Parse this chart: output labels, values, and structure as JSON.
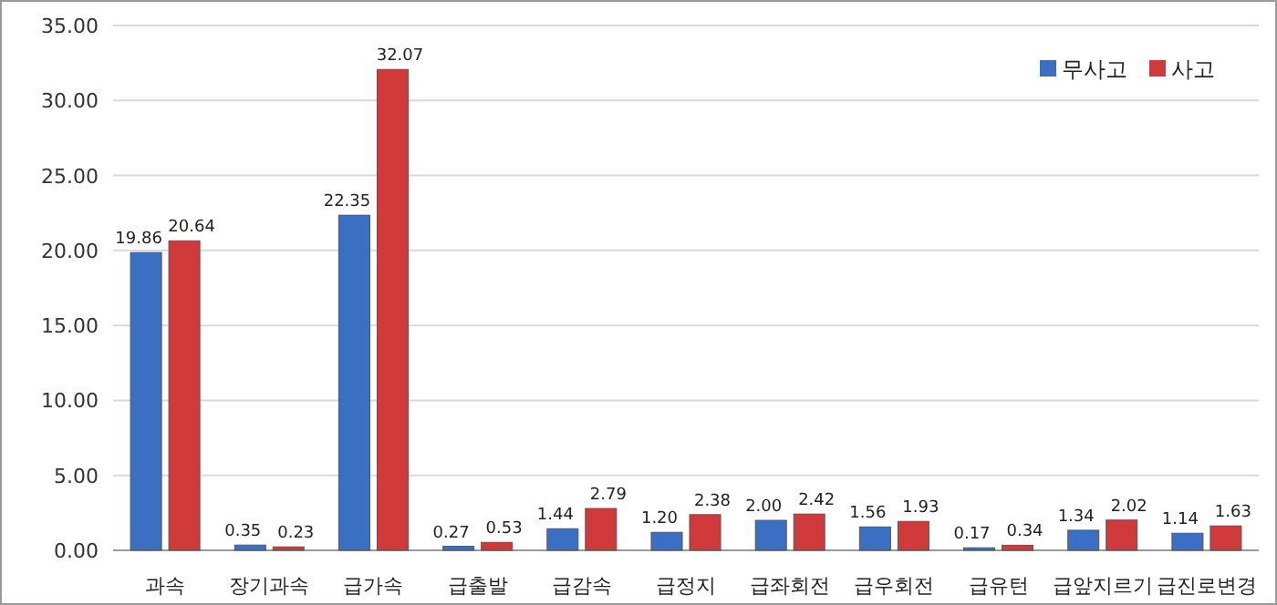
{
  "chart_data": {
    "type": "bar",
    "categories": [
      "과속",
      "장기과속",
      "급가속",
      "급출발",
      "급감속",
      "급정지",
      "급좌회전",
      "급우회전",
      "급유턴",
      "급앞지르기",
      "급진로변경"
    ],
    "series": [
      {
        "name": "무사고",
        "color": "#3a6fc4",
        "values": [
          19.86,
          0.35,
          22.35,
          0.27,
          1.44,
          1.2,
          2.0,
          1.56,
          0.17,
          1.34,
          1.14
        ],
        "value_labels": [
          "19.86",
          "0.35",
          "22.35",
          "0.27",
          "1.44",
          "1.20",
          "2.00",
          "1.56",
          "0.17",
          "1.34",
          "1.14"
        ]
      },
      {
        "name": "사고",
        "color": "#d03a3a",
        "values": [
          20.64,
          0.23,
          32.07,
          0.53,
          2.79,
          2.38,
          2.42,
          1.93,
          0.34,
          2.02,
          1.63
        ],
        "value_labels": [
          "20.64",
          "0.23",
          "32.07",
          "0.53",
          "2.79",
          "2.38",
          "2.42",
          "1.93",
          "0.34",
          "2.02",
          "1.63"
        ]
      }
    ],
    "ylim": [
      0,
      35
    ],
    "yticks": [
      {
        "value": 0,
        "label": "0.00"
      },
      {
        "value": 5,
        "label": "5.00"
      },
      {
        "value": 10,
        "label": "10.00"
      },
      {
        "value": 15,
        "label": "15.00"
      },
      {
        "value": 20,
        "label": "20.00"
      },
      {
        "value": 25,
        "label": "25.00"
      },
      {
        "value": 30,
        "label": "30.00"
      },
      {
        "value": 35,
        "label": "35.00"
      }
    ],
    "grid": "y",
    "legend": "top right"
  }
}
